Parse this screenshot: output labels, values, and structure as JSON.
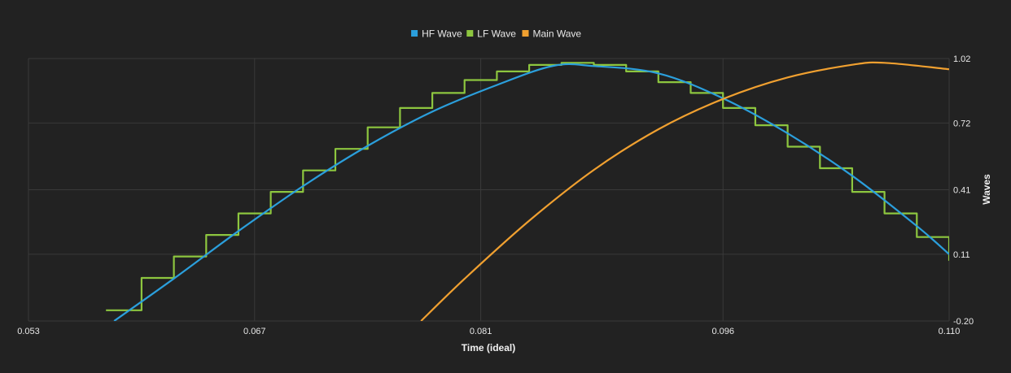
{
  "chart_data": {
    "type": "line",
    "xlabel": "Time (ideal)",
    "ylabel": "Waves",
    "xlim": [
      0.053,
      0.11
    ],
    "ylim": [
      -0.2,
      1.02
    ],
    "x_ticks": [
      "0.053",
      "0.067",
      "0.081",
      "0.096",
      "0.110"
    ],
    "y_ticks": [
      "1.02",
      "0.72",
      "0.41",
      "0.11",
      "-0.20"
    ],
    "legend_position": "top-center",
    "grid": true,
    "series": [
      {
        "name": "HF Wave",
        "color": "#2b9fdc",
        "x": [
          0.0583,
          0.062,
          0.066,
          0.07,
          0.074,
          0.078,
          0.082,
          0.0855,
          0.088,
          0.092,
          0.096,
          0.1,
          0.104,
          0.108,
          0.11
        ],
        "y": [
          -0.2,
          -0.003,
          0.218,
          0.427,
          0.614,
          0.773,
          0.897,
          0.986,
          0.985,
          0.951,
          0.835,
          0.672,
          0.475,
          0.241,
          0.11
        ]
      },
      {
        "name": "LF Wave",
        "color": "#8dc63f",
        "step": true,
        "x": [
          0.0578,
          0.058,
          0.06,
          0.062,
          0.064,
          0.066,
          0.068,
          0.07,
          0.072,
          0.074,
          0.076,
          0.078,
          0.08,
          0.082,
          0.084,
          0.086,
          0.088,
          0.09,
          0.092,
          0.094,
          0.096,
          0.098,
          0.1,
          0.102,
          0.104,
          0.106,
          0.108,
          0.11
        ],
        "y": [
          -0.15,
          -0.15,
          0.0,
          0.1,
          0.2,
          0.3,
          0.4,
          0.5,
          0.6,
          0.7,
          0.79,
          0.86,
          0.92,
          0.96,
          0.99,
          1.0,
          0.99,
          0.96,
          0.91,
          0.86,
          0.79,
          0.71,
          0.61,
          0.51,
          0.4,
          0.3,
          0.19,
          0.08
        ]
      },
      {
        "name": "Main Wave",
        "color": "#f0a030",
        "x": [
          0.0773,
          0.08,
          0.084,
          0.088,
          0.092,
          0.096,
          0.1,
          0.104,
          0.106,
          0.11
        ],
        "y": [
          -0.2,
          -0.004,
          0.266,
          0.502,
          0.691,
          0.832,
          0.932,
          0.991,
          1.0,
          0.97
        ]
      }
    ]
  }
}
